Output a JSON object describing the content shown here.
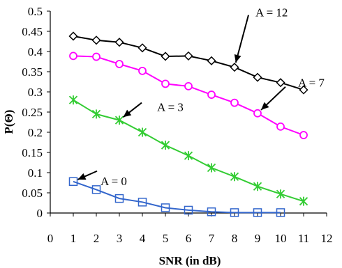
{
  "chart_data": {
    "type": "line",
    "title": "",
    "xlabel": "SNR (in dB)",
    "ylabel": "P(Θ)",
    "xlim": [
      0,
      12
    ],
    "ylim": [
      0,
      0.5
    ],
    "x_ticks": [
      0,
      1,
      2,
      3,
      4,
      5,
      6,
      7,
      8,
      9,
      10,
      11,
      12
    ],
    "y_ticks": [
      0,
      0.05,
      0.1,
      0.15,
      0.2,
      0.25,
      0.3,
      0.35,
      0.4,
      0.45,
      0.5
    ],
    "x_tick_labels": [
      "0",
      "1",
      "2",
      "3",
      "4",
      "5",
      "6",
      "7",
      "8",
      "9",
      "10",
      "11",
      "12"
    ],
    "y_tick_labels": [
      "0",
      "0.05",
      "0.1",
      "0.15",
      "0.2",
      "0.25",
      "0.3",
      "0.35",
      "0.4",
      "0.45",
      "0.5"
    ],
    "grid": false,
    "legend": "none",
    "x": [
      1,
      2,
      3,
      4,
      5,
      6,
      7,
      8,
      9,
      10,
      11
    ],
    "series": [
      {
        "name": "A = 12",
        "color": "#000000",
        "marker": "diamond",
        "values": [
          0.438,
          0.428,
          0.423,
          0.409,
          0.388,
          0.389,
          0.377,
          0.361,
          0.336,
          0.323,
          0.305
        ]
      },
      {
        "name": "A = 7",
        "color": "#ff00ff",
        "marker": "circle",
        "values": [
          0.389,
          0.387,
          0.369,
          0.352,
          0.32,
          0.314,
          0.293,
          0.273,
          0.247,
          0.214,
          0.193
        ]
      },
      {
        "name": "A = 3",
        "color": "#33cc33",
        "marker": "star",
        "values": [
          0.28,
          0.245,
          0.23,
          0.2,
          0.168,
          0.142,
          0.112,
          0.09,
          0.066,
          0.047,
          0.029
        ]
      },
      {
        "name": "A = 0",
        "color": "#3366cc",
        "marker": "square",
        "values": [
          0.078,
          0.058,
          0.036,
          0.027,
          0.013,
          0.007,
          0.003,
          0.001,
          0.001,
          0.001,
          null
        ]
      }
    ],
    "annotations": [
      {
        "text": "A = 12",
        "series": 0,
        "point_index": 7
      },
      {
        "text": "A = 7",
        "series": 1,
        "point_index": 8
      },
      {
        "text": "A = 3",
        "series": 2,
        "point_index": 2
      },
      {
        "text": "A = 0",
        "series": 3,
        "point_index": 0
      }
    ]
  }
}
